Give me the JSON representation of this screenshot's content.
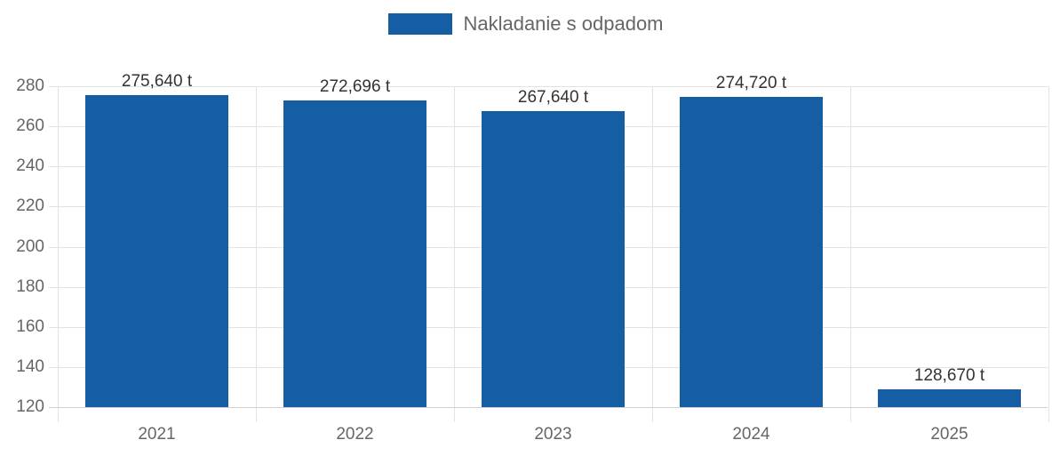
{
  "legend": {
    "label": "Nakladanie s odpadom",
    "color": "#155ea4"
  },
  "chart_data": {
    "type": "bar",
    "title": "",
    "xlabel": "",
    "ylabel": "",
    "categories": [
      "2021",
      "2022",
      "2023",
      "2024",
      "2025"
    ],
    "series": [
      {
        "name": "Nakladanie s odpadom",
        "values": [
          275.64,
          272.696,
          267.64,
          274.72,
          128.67
        ],
        "color": "#155ea4"
      }
    ],
    "data_labels": [
      "275,640 t",
      "272,696 t",
      "267,640 t",
      "274,720 t",
      "128,670 t"
    ],
    "ylim": [
      120,
      280
    ],
    "yticks": [
      "280",
      "260",
      "240",
      "220",
      "200",
      "180",
      "160",
      "140",
      "120"
    ],
    "grid": true,
    "legend_position": "top"
  }
}
